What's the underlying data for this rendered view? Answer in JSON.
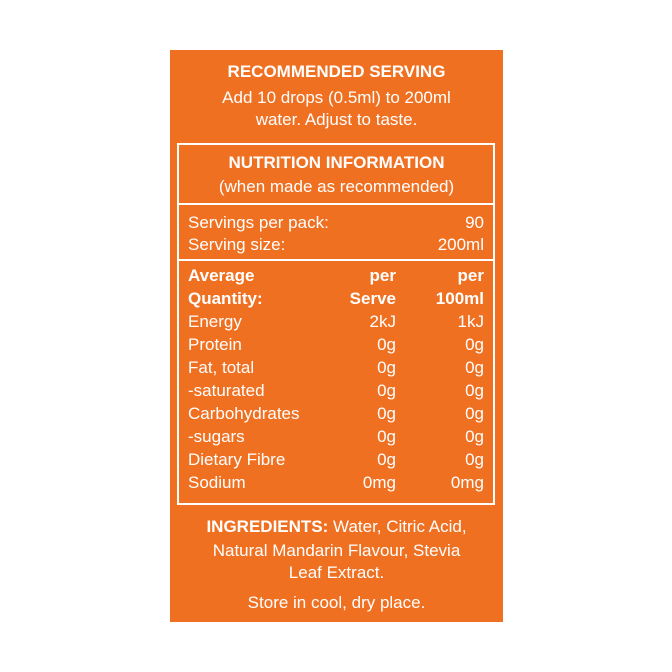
{
  "recommended": {
    "title": "RECOMMENDED SERVING",
    "lines": [
      "Add 10 drops (0.5ml) to 200ml",
      "water. Adjust to taste."
    ]
  },
  "nutrition": {
    "title": "NUTRITION INFORMATION",
    "subtitle": "(when made as recommended)",
    "servings": [
      [
        "Servings per pack:",
        "90"
      ],
      [
        "Serving size:",
        "200ml"
      ]
    ],
    "header": [
      [
        "Average",
        "per",
        "per"
      ],
      [
        "Quantity:",
        "Serve",
        "100ml"
      ]
    ],
    "rows": [
      [
        "Energy",
        "2kJ",
        "1kJ"
      ],
      [
        "Protein",
        "0g",
        "0g"
      ],
      [
        "Fat, total",
        "0g",
        "0g"
      ],
      [
        "-saturated",
        "0g",
        "0g"
      ],
      [
        "Carbohydrates",
        "0g",
        "0g"
      ],
      [
        "-sugars",
        "0g",
        "0g"
      ],
      [
        "Dietary Fibre",
        "0g",
        "0g"
      ],
      [
        "Sodium",
        "0mg",
        "0mg"
      ]
    ]
  },
  "ingredients": {
    "label": "INGREDIENTS:",
    "lines": [
      "Water, Citric Acid,",
      "Natural Mandarin Flavour, Stevia",
      "Leaf Extract."
    ]
  },
  "storage": "Store in cool, dry place."
}
